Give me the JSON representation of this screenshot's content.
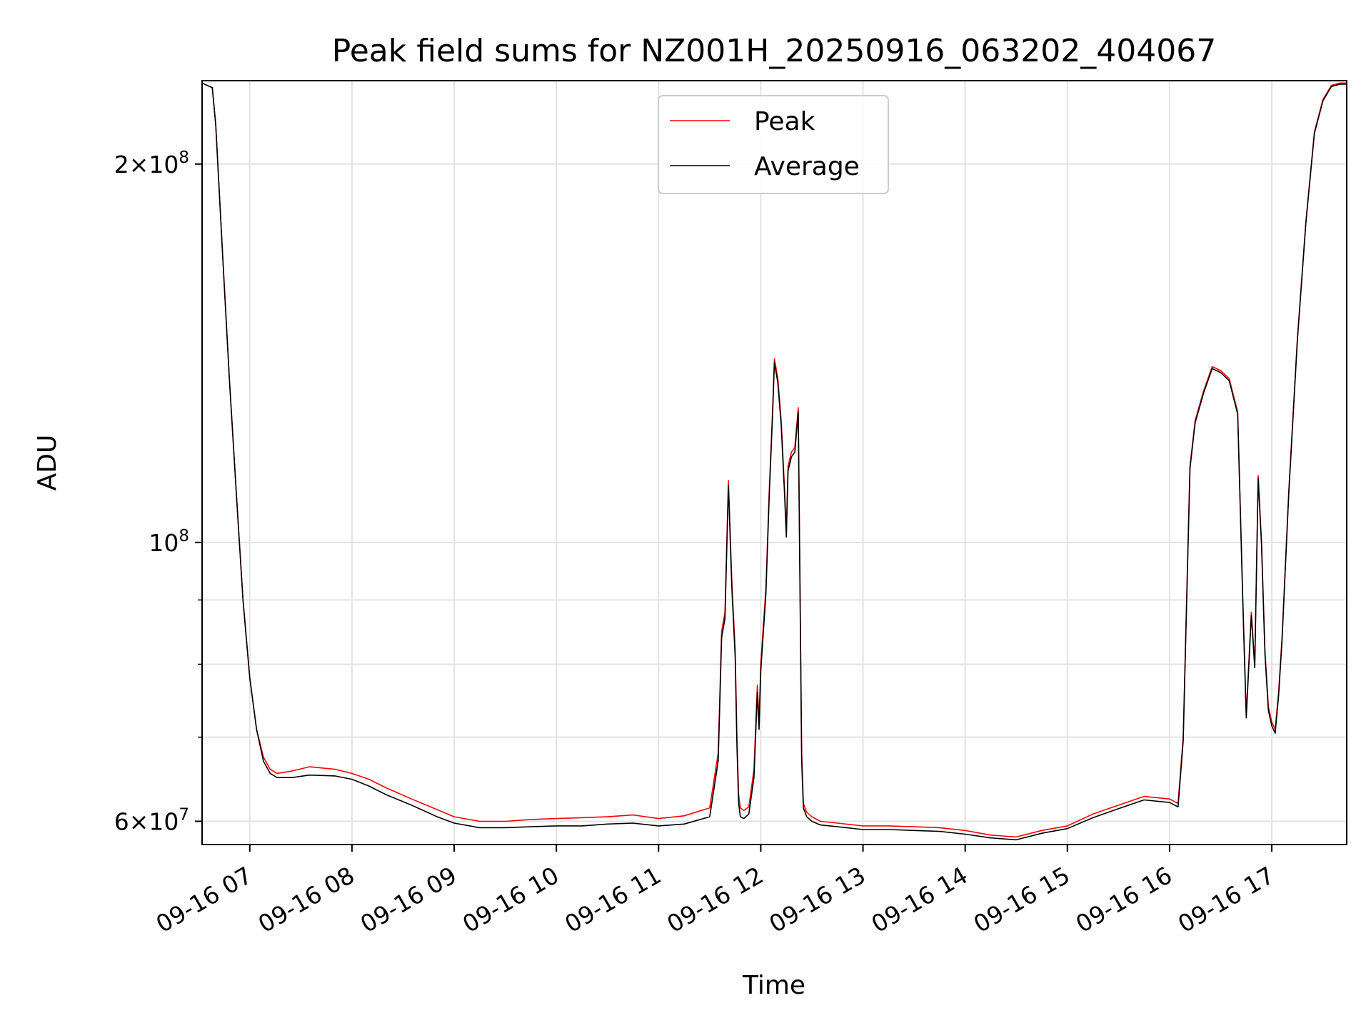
{
  "chart_data": {
    "type": "line",
    "title": "Peak field sums for NZ001H_20250916_063202_404067",
    "xlabel": "Time",
    "ylabel": "ADU",
    "y_scale": "log",
    "ylim": [
      57500000,
      233000000
    ],
    "xlim": [
      "2025-09-16 06:32",
      "2025-09-16 17:44"
    ],
    "grid": true,
    "legend_position": "top-center",
    "x_ticks": [
      {
        "time": "2025-09-16 07:00",
        "label": "09-16 07"
      },
      {
        "time": "2025-09-16 08:00",
        "label": "09-16 08"
      },
      {
        "time": "2025-09-16 09:00",
        "label": "09-16 09"
      },
      {
        "time": "2025-09-16 10:00",
        "label": "09-16 10"
      },
      {
        "time": "2025-09-16 11:00",
        "label": "09-16 11"
      },
      {
        "time": "2025-09-16 12:00",
        "label": "09-16 12"
      },
      {
        "time": "2025-09-16 13:00",
        "label": "09-16 13"
      },
      {
        "time": "2025-09-16 14:00",
        "label": "09-16 14"
      },
      {
        "time": "2025-09-16 15:00",
        "label": "09-16 15"
      },
      {
        "time": "2025-09-16 16:00",
        "label": "09-16 16"
      },
      {
        "time": "2025-09-16 17:00",
        "label": "09-16 17"
      }
    ],
    "y_major_ticks": [
      {
        "value": 60000000,
        "mantissa": "6",
        "exponent": "7"
      },
      {
        "value": 100000000,
        "mantissa": "",
        "exponent": "8"
      },
      {
        "value": 200000000,
        "mantissa": "2",
        "exponent": "8"
      }
    ],
    "y_minor_ticks": [
      70000000,
      80000000,
      90000000
    ],
    "series": [
      {
        "name": "Peak",
        "color": "#ff0000",
        "x": [
          "2025-09-16 06:32",
          "2025-09-16 06:38",
          "2025-09-16 06:40",
          "2025-09-16 06:44",
          "2025-09-16 06:48",
          "2025-09-16 06:52",
          "2025-09-16 06:56",
          "2025-09-16 07:00",
          "2025-09-16 07:04",
          "2025-09-16 07:08",
          "2025-09-16 07:12",
          "2025-09-16 07:16",
          "2025-09-16 07:25",
          "2025-09-16 07:35",
          "2025-09-16 07:50",
          "2025-09-16 08:00",
          "2025-09-16 08:10",
          "2025-09-16 08:20",
          "2025-09-16 08:35",
          "2025-09-16 08:50",
          "2025-09-16 09:00",
          "2025-09-16 09:15",
          "2025-09-16 09:30",
          "2025-09-16 09:45",
          "2025-09-16 10:00",
          "2025-09-16 10:15",
          "2025-09-16 10:30",
          "2025-09-16 10:45",
          "2025-09-16 11:00",
          "2025-09-16 11:15",
          "2025-09-16 11:30",
          "2025-09-16 11:35",
          "2025-09-16 11:37",
          "2025-09-16 11:39",
          "2025-09-16 11:41",
          "2025-09-16 11:42",
          "2025-09-16 11:43",
          "2025-09-16 11:45",
          "2025-09-16 11:46",
          "2025-09-16 11:47",
          "2025-09-16 11:48",
          "2025-09-16 11:50",
          "2025-09-16 11:53",
          "2025-09-16 11:56",
          "2025-09-16 11:58",
          "2025-09-16 11:59",
          "2025-09-16 12:00",
          "2025-09-16 12:03",
          "2025-09-16 12:05",
          "2025-09-16 12:07",
          "2025-09-16 12:08",
          "2025-09-16 12:10",
          "2025-09-16 12:12",
          "2025-09-16 12:14",
          "2025-09-16 12:15",
          "2025-09-16 12:16",
          "2025-09-16 12:18",
          "2025-09-16 12:20",
          "2025-09-16 12:22",
          "2025-09-16 12:24",
          "2025-09-16 12:25",
          "2025-09-16 12:27",
          "2025-09-16 12:30",
          "2025-09-16 12:35",
          "2025-09-16 12:45",
          "2025-09-16 13:00",
          "2025-09-16 13:15",
          "2025-09-16 13:30",
          "2025-09-16 13:45",
          "2025-09-16 14:00",
          "2025-09-16 14:15",
          "2025-09-16 14:30",
          "2025-09-16 14:45",
          "2025-09-16 15:00",
          "2025-09-16 15:15",
          "2025-09-16 15:30",
          "2025-09-16 15:45",
          "2025-09-16 16:00",
          "2025-09-16 16:05",
          "2025-09-16 16:08",
          "2025-09-16 16:10",
          "2025-09-16 16:12",
          "2025-09-16 16:15",
          "2025-09-16 16:20",
          "2025-09-16 16:25",
          "2025-09-16 16:30",
          "2025-09-16 16:35",
          "2025-09-16 16:40",
          "2025-09-16 16:43",
          "2025-09-16 16:45",
          "2025-09-16 16:48",
          "2025-09-16 16:50",
          "2025-09-16 16:52",
          "2025-09-16 16:54",
          "2025-09-16 16:56",
          "2025-09-16 16:58",
          "2025-09-16 17:00",
          "2025-09-16 17:02",
          "2025-09-16 17:04",
          "2025-09-16 17:06",
          "2025-09-16 17:08",
          "2025-09-16 17:10",
          "2025-09-16 17:15",
          "2025-09-16 17:20",
          "2025-09-16 17:25",
          "2025-09-16 17:30",
          "2025-09-16 17:35",
          "2025-09-16 17:40",
          "2025-09-16 17:44"
        ],
        "y": [
          232000000,
          230000000,
          215000000,
          170000000,
          135000000,
          110000000,
          90000000,
          78000000,
          71000000,
          67500000,
          66000000,
          65500000,
          65800000,
          66300000,
          66000000,
          65500000,
          64800000,
          63800000,
          62500000,
          61300000,
          60500000,
          60000000,
          60000000,
          60200000,
          60300000,
          60400000,
          60500000,
          60700000,
          60300000,
          60600000,
          61500000,
          68000000,
          85000000,
          88000000,
          112000000,
          102000000,
          93000000,
          82000000,
          70000000,
          63000000,
          61500000,
          61200000,
          61600000,
          66000000,
          77000000,
          72000000,
          80000000,
          92000000,
          110000000,
          128000000,
          140000000,
          135000000,
          125000000,
          110000000,
          102000000,
          115000000,
          118000000,
          119000000,
          128000000,
          68000000,
          62000000,
          61000000,
          60500000,
          60000000,
          59800000,
          59500000,
          59500000,
          59400000,
          59300000,
          59000000,
          58500000,
          58300000,
          59000000,
          59500000,
          60800000,
          61800000,
          62800000,
          62500000,
          62000000,
          70000000,
          90000000,
          115000000,
          125000000,
          132000000,
          138000000,
          137000000,
          135000000,
          127000000,
          90000000,
          73000000,
          88000000,
          80000000,
          113000000,
          100000000,
          82000000,
          74000000,
          72000000,
          71000000,
          76000000,
          84000000,
          96000000,
          110000000,
          145000000,
          180000000,
          212000000,
          225000000,
          231000000,
          232000000,
          232000000
        ]
      },
      {
        "name": "Average",
        "color": "#000000",
        "x": [
          "2025-09-16 06:32",
          "2025-09-16 06:38",
          "2025-09-16 06:40",
          "2025-09-16 06:44",
          "2025-09-16 06:48",
          "2025-09-16 06:52",
          "2025-09-16 06:56",
          "2025-09-16 07:00",
          "2025-09-16 07:04",
          "2025-09-16 07:08",
          "2025-09-16 07:12",
          "2025-09-16 07:16",
          "2025-09-16 07:25",
          "2025-09-16 07:35",
          "2025-09-16 07:50",
          "2025-09-16 08:00",
          "2025-09-16 08:10",
          "2025-09-16 08:20",
          "2025-09-16 08:35",
          "2025-09-16 08:50",
          "2025-09-16 09:00",
          "2025-09-16 09:15",
          "2025-09-16 09:30",
          "2025-09-16 09:45",
          "2025-09-16 10:00",
          "2025-09-16 10:15",
          "2025-09-16 10:30",
          "2025-09-16 10:45",
          "2025-09-16 11:00",
          "2025-09-16 11:15",
          "2025-09-16 11:30",
          "2025-09-16 11:35",
          "2025-09-16 11:37",
          "2025-09-16 11:39",
          "2025-09-16 11:41",
          "2025-09-16 11:42",
          "2025-09-16 11:43",
          "2025-09-16 11:45",
          "2025-09-16 11:46",
          "2025-09-16 11:47",
          "2025-09-16 11:48",
          "2025-09-16 11:50",
          "2025-09-16 11:53",
          "2025-09-16 11:56",
          "2025-09-16 11:58",
          "2025-09-16 11:59",
          "2025-09-16 12:00",
          "2025-09-16 12:03",
          "2025-09-16 12:05",
          "2025-09-16 12:07",
          "2025-09-16 12:08",
          "2025-09-16 12:10",
          "2025-09-16 12:12",
          "2025-09-16 12:14",
          "2025-09-16 12:15",
          "2025-09-16 12:16",
          "2025-09-16 12:18",
          "2025-09-16 12:20",
          "2025-09-16 12:22",
          "2025-09-16 12:24",
          "2025-09-16 12:25",
          "2025-09-16 12:27",
          "2025-09-16 12:30",
          "2025-09-16 12:35",
          "2025-09-16 12:45",
          "2025-09-16 13:00",
          "2025-09-16 13:15",
          "2025-09-16 13:30",
          "2025-09-16 13:45",
          "2025-09-16 14:00",
          "2025-09-16 14:15",
          "2025-09-16 14:30",
          "2025-09-16 14:45",
          "2025-09-16 15:00",
          "2025-09-16 15:15",
          "2025-09-16 15:30",
          "2025-09-16 15:45",
          "2025-09-16 16:00",
          "2025-09-16 16:05",
          "2025-09-16 16:08",
          "2025-09-16 16:10",
          "2025-09-16 16:12",
          "2025-09-16 16:15",
          "2025-09-16 16:20",
          "2025-09-16 16:25",
          "2025-09-16 16:30",
          "2025-09-16 16:35",
          "2025-09-16 16:40",
          "2025-09-16 16:43",
          "2025-09-16 16:45",
          "2025-09-16 16:48",
          "2025-09-16 16:50",
          "2025-09-16 16:52",
          "2025-09-16 16:54",
          "2025-09-16 16:56",
          "2025-09-16 16:58",
          "2025-09-16 17:00",
          "2025-09-16 17:02",
          "2025-09-16 17:04",
          "2025-09-16 17:06",
          "2025-09-16 17:08",
          "2025-09-16 17:10",
          "2025-09-16 17:15",
          "2025-09-16 17:20",
          "2025-09-16 17:25",
          "2025-09-16 17:30",
          "2025-09-16 17:35",
          "2025-09-16 17:40",
          "2025-09-16 17:44"
        ],
        "y": [
          232000000,
          230000000,
          215000000,
          170000000,
          135000000,
          110000000,
          90000000,
          78000000,
          71000000,
          67000000,
          65500000,
          65000000,
          65000000,
          65300000,
          65200000,
          64800000,
          64000000,
          63000000,
          61800000,
          60500000,
          59800000,
          59300000,
          59300000,
          59400000,
          59500000,
          59500000,
          59700000,
          59800000,
          59500000,
          59700000,
          60500000,
          67000000,
          84000000,
          87000000,
          111000000,
          101000000,
          92000000,
          81000000,
          69000000,
          62000000,
          60500000,
          60300000,
          60800000,
          65000000,
          76000000,
          71000000,
          79000000,
          91000000,
          109000000,
          127000000,
          139000000,
          134000000,
          124000000,
          109000000,
          101000000,
          114000000,
          117000000,
          118000000,
          127000000,
          67000000,
          61500000,
          60500000,
          60000000,
          59600000,
          59400000,
          59100000,
          59100000,
          59000000,
          58900000,
          58600000,
          58200000,
          58000000,
          58700000,
          59200000,
          60400000,
          61400000,
          62400000,
          62100000,
          61600000,
          69500000,
          89500000,
          114500000,
          124500000,
          131500000,
          137500000,
          136500000,
          134500000,
          126500000,
          89500000,
          72500000,
          87500000,
          79500000,
          112500000,
          99500000,
          81500000,
          73500000,
          71500000,
          70500000,
          75500000,
          83500000,
          95500000,
          109500000,
          144500000,
          179500000,
          211500000,
          224500000,
          230500000,
          231500000,
          231500000
        ]
      }
    ]
  }
}
